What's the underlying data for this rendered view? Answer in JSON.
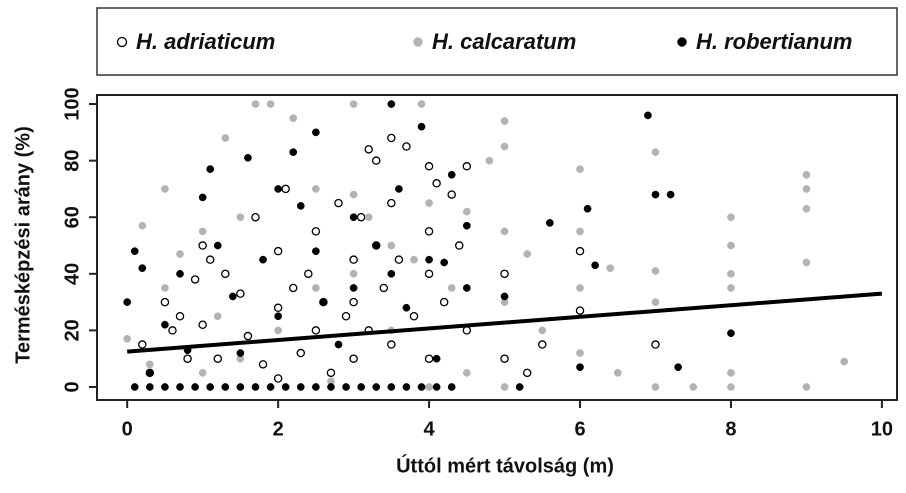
{
  "chart_data": {
    "type": "scatter",
    "xlabel": "Úttól mért távolság (m)",
    "ylabel": "Termésképzési arány (%)",
    "xlim": [
      -0.4,
      10.2
    ],
    "ylim": [
      -4.6,
      103.2
    ],
    "xticks": [
      0,
      2,
      4,
      6,
      8,
      10
    ],
    "yticks": [
      0,
      20,
      40,
      60,
      80,
      100
    ],
    "series": [
      {
        "name": "H. adriaticum",
        "color": "#000000",
        "marker": "open",
        "x": [
          0.2,
          0.3,
          0.5,
          0.6,
          0.7,
          0.8,
          0.9,
          1,
          1,
          1.1,
          1.2,
          1.3,
          1.5,
          1.6,
          1.7,
          1.8,
          2,
          2,
          2,
          2.1,
          2.2,
          2.3,
          2.4,
          2.5,
          2.5,
          2.6,
          2.7,
          2.8,
          2.9,
          3,
          3,
          3,
          3.1,
          3.2,
          3.2,
          3.3,
          3.3,
          3.4,
          3.5,
          3.5,
          3.5,
          3.6,
          3.7,
          3.8,
          4,
          4,
          4,
          4,
          4.1,
          4.2,
          4.3,
          4.4,
          4.5,
          4.5,
          5,
          5,
          5.3,
          5.5,
          6,
          6,
          7
        ],
        "values": [
          15,
          5,
          30,
          20,
          25,
          10,
          38,
          50,
          22,
          45,
          10,
          40,
          33,
          18,
          60,
          8,
          48,
          28,
          3,
          70,
          35,
          12,
          40,
          55,
          20,
          30,
          5,
          65,
          25,
          45,
          10,
          30,
          60,
          84,
          20,
          80,
          50,
          35,
          88,
          15,
          65,
          45,
          85,
          25,
          78,
          55,
          40,
          10,
          72,
          30,
          68,
          50,
          78,
          20,
          40,
          10,
          5,
          15,
          27,
          48,
          15
        ]
      },
      {
        "name": "H. calcaratum",
        "color": "#b3b3b3",
        "marker": "filled",
        "x": [
          0,
          0.2,
          0.3,
          0.5,
          0.5,
          0.7,
          1,
          1,
          1.2,
          1.3,
          1.5,
          1.5,
          1.7,
          1.8,
          1.9,
          2,
          2.2,
          2.5,
          2.5,
          2.7,
          3,
          3,
          3,
          3.2,
          3.5,
          3.5,
          3.8,
          3.9,
          4,
          4,
          4.3,
          4.5,
          4.5,
          4.8,
          5,
          5,
          5,
          5,
          5,
          5.3,
          5.5,
          6,
          6,
          6,
          6,
          6.4,
          6.5,
          7,
          7,
          7,
          7,
          7.5,
          8,
          8,
          8,
          8,
          8,
          8,
          9,
          9,
          9,
          9,
          9,
          9.5
        ],
        "values": [
          17,
          57,
          8,
          70,
          35,
          47,
          55,
          5,
          25,
          88,
          60,
          10,
          100,
          45,
          100,
          20,
          95,
          70,
          35,
          2,
          100,
          68,
          40,
          60,
          50,
          20,
          45,
          100,
          65,
          0,
          35,
          62,
          5,
          80,
          94,
          85,
          55,
          30,
          0,
          47,
          20,
          77,
          55,
          35,
          12,
          42,
          5,
          83,
          41,
          30,
          0,
          0,
          60,
          50,
          40,
          35,
          5,
          0,
          75,
          70,
          63,
          44,
          0,
          9
        ]
      },
      {
        "name": "H. robertianum",
        "color": "#000000",
        "marker": "filled",
        "x": [
          0,
          0.1,
          0.2,
          0.3,
          0.5,
          0.7,
          0.8,
          1,
          1.1,
          1.2,
          1.4,
          1.5,
          1.6,
          1.8,
          2,
          2,
          2.2,
          2.3,
          2.5,
          2.5,
          2.6,
          2.8,
          3,
          3,
          3.1,
          3.3,
          3.5,
          3.5,
          3.6,
          3.7,
          3.9,
          4,
          4.1,
          4.2,
          4.3,
          4.5,
          4.5,
          5,
          5.2,
          5.6,
          6,
          6.1,
          6.2,
          6.9,
          7,
          7.2,
          7.3,
          8,
          0.1,
          0.3,
          0.5,
          0.7,
          0.9,
          1.1,
          1.3,
          1.5,
          1.7,
          1.9,
          2.1,
          2.3,
          2.5,
          2.7,
          2.9,
          3.3,
          3.5,
          3.7,
          3.9,
          4.1,
          4.3
        ],
        "values": [
          30,
          48,
          42,
          5,
          22,
          40,
          13,
          67,
          77,
          50,
          32,
          12,
          81,
          45,
          70,
          25,
          83,
          64,
          90,
          48,
          30,
          15,
          60,
          35,
          0,
          50,
          100,
          40,
          70,
          28,
          92,
          45,
          10,
          44,
          75,
          57,
          35,
          32,
          0,
          58,
          7,
          63,
          43,
          96,
          68,
          68,
          7,
          19,
          0,
          0,
          0,
          0,
          0,
          0,
          0,
          0,
          0,
          0,
          0,
          0,
          0,
          0,
          0,
          0,
          0,
          0,
          0,
          0,
          0
        ]
      }
    ],
    "trend": {
      "x": [
        0,
        10
      ],
      "values": [
        12.5,
        33
      ]
    }
  }
}
